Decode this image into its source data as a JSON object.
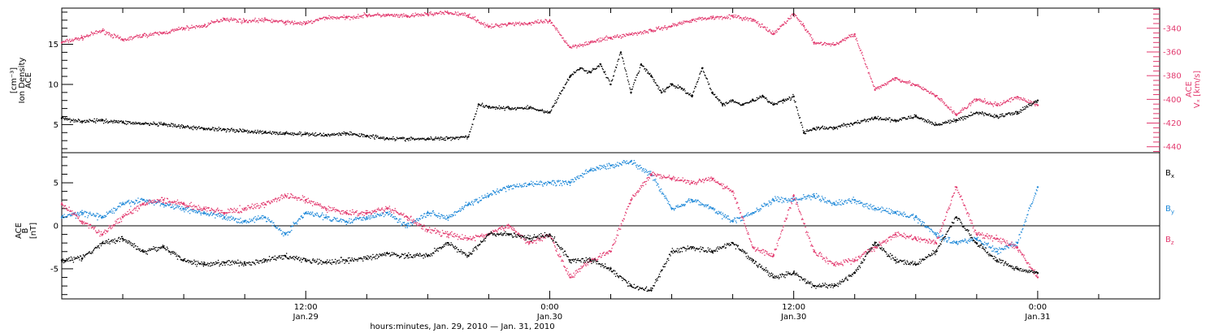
{
  "chart_data": [
    {
      "type": "scatter",
      "panel": "top",
      "title": "",
      "ylabel_left": [
        "ACE",
        "Ion Density",
        "[cm⁻³]"
      ],
      "ylabel_right": [
        "ACE",
        "Vₓ [km/s]"
      ],
      "x_ticks": [
        {
          "hours": 12,
          "line1": "12:00",
          "line2": "Jan.29"
        },
        {
          "hours": 24,
          "line1": "0:00",
          "line2": "Jan.30"
        },
        {
          "hours": 36,
          "line1": "12:00",
          "line2": "Jan.30"
        },
        {
          "hours": 48,
          "line1": "0:00",
          "line2": "Jan.31"
        }
      ],
      "xlabel": "hours:minutes, Jan. 29, 2010 — Jan. 31, 2010",
      "xlim_hours": [
        0,
        54
      ],
      "y_left": {
        "lim": [
          1.5,
          19.5
        ],
        "ticks": [
          5,
          10,
          15
        ],
        "color": "#000000"
      },
      "y_right": {
        "lim": [
          -445,
          -323
        ],
        "ticks": [
          -340,
          -360,
          -380,
          -400,
          -420,
          -440
        ],
        "color": "#e2396e"
      },
      "grid": false,
      "series": [
        {
          "key": "density",
          "axis": "left",
          "color": "#000000",
          "x": [
            0,
            1,
            2,
            3,
            4,
            5,
            6,
            7,
            8,
            9,
            10,
            11,
            12,
            13,
            14,
            15,
            16,
            17,
            18,
            19,
            20,
            20.5,
            21,
            22,
            23,
            24,
            25,
            25.5,
            26,
            26.5,
            27,
            27.5,
            28,
            28.5,
            29,
            29.5,
            30,
            30.5,
            31,
            31.5,
            32,
            32.5,
            33,
            33.5,
            34,
            34.5,
            35,
            35.5,
            36,
            36.5,
            37,
            38,
            39,
            40,
            41,
            42,
            43,
            44,
            45,
            46,
            47,
            48
          ],
          "y": [
            5.8,
            5.4,
            5.5,
            5.3,
            5.1,
            5.0,
            4.7,
            4.5,
            4.4,
            4.2,
            4.0,
            3.9,
            3.8,
            3.7,
            3.9,
            3.6,
            3.3,
            3.2,
            3.2,
            3.3,
            3.5,
            7.5,
            7.2,
            7.0,
            7.1,
            6.5,
            11.0,
            12.0,
            11.5,
            12.5,
            10.0,
            14.0,
            9.0,
            12.5,
            11.0,
            9.0,
            10.0,
            9.5,
            8.5,
            12.0,
            9.0,
            7.5,
            8.0,
            7.5,
            8.0,
            8.5,
            7.5,
            8.0,
            8.5,
            4.0,
            4.5,
            4.6,
            5.2,
            5.8,
            5.5,
            6.0,
            5.0,
            5.5,
            6.5,
            6.0,
            6.5,
            8.0
          ]
        },
        {
          "key": "speed",
          "axis": "right",
          "color": "#e2396e",
          "x": [
            0,
            1,
            2,
            3,
            4,
            5,
            6,
            7,
            8,
            9,
            10,
            11,
            12,
            13,
            14,
            15,
            16,
            17,
            18,
            19,
            20,
            21,
            22,
            23,
            24,
            25,
            26,
            27,
            28,
            29,
            30,
            31,
            32,
            33,
            34,
            35,
            36,
            36.5,
            37,
            38,
            39,
            40,
            41,
            42,
            43,
            44,
            45,
            46,
            47,
            48
          ],
          "y": [
            -352,
            -348,
            -342,
            -350,
            -346,
            -344,
            -340,
            -338,
            -332,
            -334,
            -333,
            -335,
            -336,
            -331,
            -331,
            -329,
            -329,
            -330,
            -328,
            -327,
            -329,
            -339,
            -336,
            -336,
            -334,
            -356,
            -352,
            -348,
            -345,
            -342,
            -338,
            -333,
            -331,
            -330,
            -333,
            -345,
            -328,
            -338,
            -352,
            -354,
            -345,
            -392,
            -382,
            -388,
            -397,
            -413,
            -400,
            -405,
            -398,
            -405
          ]
        }
      ]
    },
    {
      "type": "scatter",
      "panel": "bottom",
      "title": "",
      "ylabel_left": [
        "ACE",
        "B",
        "[nT]"
      ],
      "xlim_hours": [
        0,
        54
      ],
      "y_left": {
        "lim": [
          -8.5,
          8.5
        ],
        "ticks": [
          5,
          0,
          -5
        ],
        "color": "#000000"
      },
      "zero_line": true,
      "grid": false,
      "legend": {
        "placement": "right",
        "entries": [
          "Bx",
          "By",
          "Bz"
        ]
      },
      "series": [
        {
          "key": "bx",
          "name": "Bx",
          "color": "#000000",
          "x": [
            0,
            1,
            2,
            3,
            4,
            5,
            6,
            7,
            8,
            9,
            10,
            11,
            12,
            13,
            14,
            15,
            16,
            17,
            18,
            19,
            20,
            21,
            22,
            23,
            24,
            25,
            26,
            27,
            28,
            29,
            30,
            31,
            32,
            33,
            34,
            35,
            36,
            37,
            38,
            39,
            40,
            41,
            42,
            43,
            44,
            45,
            46,
            47,
            48
          ],
          "y": [
            -4.0,
            -3.8,
            -2.0,
            -1.5,
            -3.0,
            -2.5,
            -4.0,
            -4.5,
            -4.3,
            -4.4,
            -4.0,
            -3.5,
            -4.0,
            -4.2,
            -4.0,
            -3.8,
            -3.2,
            -3.5,
            -3.5,
            -2.0,
            -3.5,
            -1.0,
            -1.0,
            -1.5,
            -1.0,
            -4.0,
            -4.0,
            -5.0,
            -7.0,
            -7.5,
            -3.0,
            -2.5,
            -3.0,
            -2.0,
            -4.0,
            -6.0,
            -5.5,
            -7.0,
            -7.0,
            -5.5,
            -2.0,
            -4.0,
            -4.5,
            -3.0,
            1.0,
            -2.0,
            -4.0,
            -5.0,
            -5.5
          ]
        },
        {
          "key": "by",
          "name": "By",
          "color": "#1e88d8",
          "x": [
            0,
            1,
            2,
            3,
            4,
            5,
            6,
            7,
            8,
            9,
            10,
            11,
            12,
            13,
            14,
            15,
            16,
            17,
            18,
            19,
            20,
            21,
            22,
            23,
            24,
            25,
            26,
            27,
            28,
            29,
            30,
            31,
            32,
            33,
            34,
            35,
            36,
            37,
            38,
            39,
            40,
            41,
            42,
            43,
            44,
            45,
            46,
            47,
            48
          ],
          "y": [
            1.0,
            1.5,
            1.0,
            2.5,
            3.0,
            2.5,
            2.0,
            1.5,
            1.0,
            0.5,
            1.0,
            -1.0,
            1.5,
            1.0,
            0.5,
            1.0,
            1.5,
            0.0,
            1.5,
            1.0,
            2.5,
            3.5,
            4.5,
            4.8,
            5.0,
            5.0,
            6.5,
            7.0,
            7.5,
            6.0,
            2.0,
            3.0,
            2.0,
            0.5,
            1.5,
            3.0,
            3.0,
            3.5,
            2.5,
            3.0,
            2.0,
            1.5,
            1.0,
            -1.0,
            -2.0,
            -1.5,
            -3.0,
            -2.0,
            4.5
          ]
        },
        {
          "key": "bz",
          "name": "Bz",
          "color": "#e2396e",
          "x": [
            0,
            1,
            2,
            3,
            4,
            5,
            6,
            7,
            8,
            9,
            10,
            11,
            12,
            13,
            14,
            15,
            16,
            17,
            18,
            19,
            20,
            21,
            22,
            23,
            24,
            25,
            26,
            27,
            28,
            29,
            30,
            31,
            32,
            33,
            34,
            35,
            36,
            37,
            38,
            39,
            40,
            41,
            42,
            43,
            44,
            45,
            46,
            47,
            48
          ],
          "y": [
            2.5,
            0.5,
            -1.0,
            1.0,
            2.5,
            3.0,
            2.5,
            2.0,
            1.5,
            2.0,
            2.5,
            3.5,
            3.0,
            2.0,
            1.5,
            1.5,
            2.0,
            1.0,
            -0.5,
            -1.0,
            -1.5,
            -1.0,
            0.0,
            -2.0,
            -1.0,
            -6.0,
            -4.0,
            -3.0,
            3.0,
            6.0,
            5.5,
            5.0,
            5.5,
            4.0,
            -2.5,
            -3.5,
            3.5,
            -3.0,
            -4.5,
            -4.0,
            -2.5,
            -1.0,
            -1.5,
            -2.0,
            4.5,
            -1.0,
            -1.5,
            -2.5,
            -6.0
          ]
        }
      ]
    }
  ]
}
